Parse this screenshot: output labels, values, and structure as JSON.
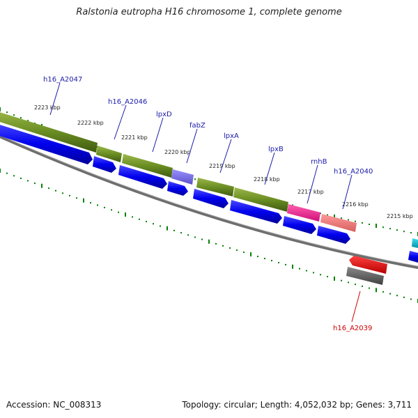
{
  "title": "Ralstonia eutropha H16 chromosome 1, complete genome",
  "footer": {
    "accession": "Accession: NC_008313",
    "summary": "Topology: circular; Length: 4,052,032 bp; Genes: 3,711"
  },
  "colors": {
    "forward_gene": "#0000ee",
    "reverse_gene": "#ff0000",
    "backbone": "#808080",
    "ticks": "#008000",
    "cds_olive": "#6b8e23",
    "label_forward": "#1a1aaa",
    "label_reverse": "#cc0000"
  },
  "kbp_labels": [
    "2223 kbp",
    "2222 kbp",
    "2221 kbp",
    "2220 kbp",
    "2219 kbp",
    "2218 kbp",
    "2217 kbp",
    "2216 kbp",
    "2215 kbp"
  ],
  "gene_labels": [
    {
      "text": "h16_A2047",
      "strand": "forward"
    },
    {
      "text": "h16_A2046",
      "strand": "forward"
    },
    {
      "text": "lpxD",
      "strand": "forward"
    },
    {
      "text": "fabZ",
      "strand": "forward"
    },
    {
      "text": "lpxA",
      "strand": "forward"
    },
    {
      "text": "lpxB",
      "strand": "forward"
    },
    {
      "text": "rnhB",
      "strand": "forward"
    },
    {
      "text": "h16_A2040",
      "strand": "forward"
    },
    {
      "text": "h16_A2039",
      "strand": "reverse"
    }
  ]
}
